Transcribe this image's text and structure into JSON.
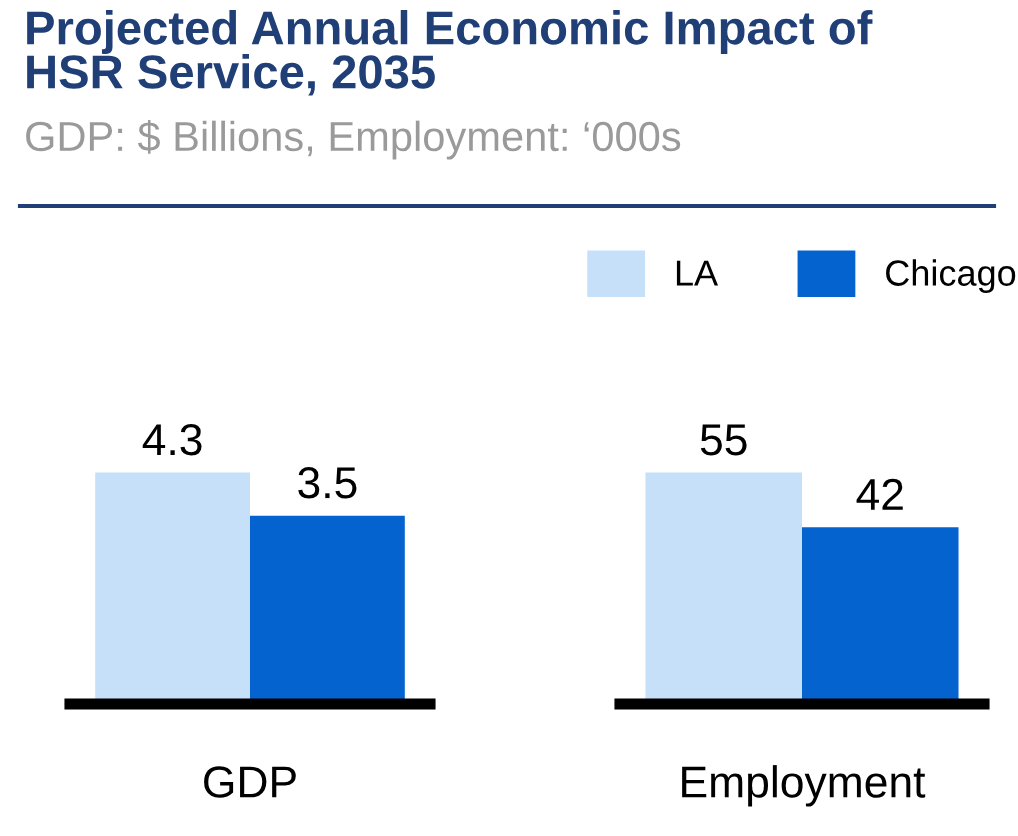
{
  "chart_data": [
    {
      "type": "bar",
      "title": "Projected Annual Economic Impact of HSR Service, 2035",
      "subtitle": "GDP: $ Billions, Employment: ‘000s",
      "categories": [
        "GDP"
      ],
      "data_labels": true,
      "legend": false,
      "series": [
        {
          "color": "#c6e0f9",
          "values": [
            4.3
          ]
        },
        {
          "color": "#0563d0",
          "values": [
            3.5
          ]
        }
      ]
    },
    {
      "type": "bar",
      "categories": [
        "Employment"
      ],
      "data_labels": true,
      "legend": "top",
      "series": [
        {
          "name": "LA",
          "color": "#c6e0f9",
          "values": [
            55
          ]
        },
        {
          "name": "Chicago",
          "color": "#0563d0",
          "values": [
            42
          ]
        }
      ]
    }
  ]
}
